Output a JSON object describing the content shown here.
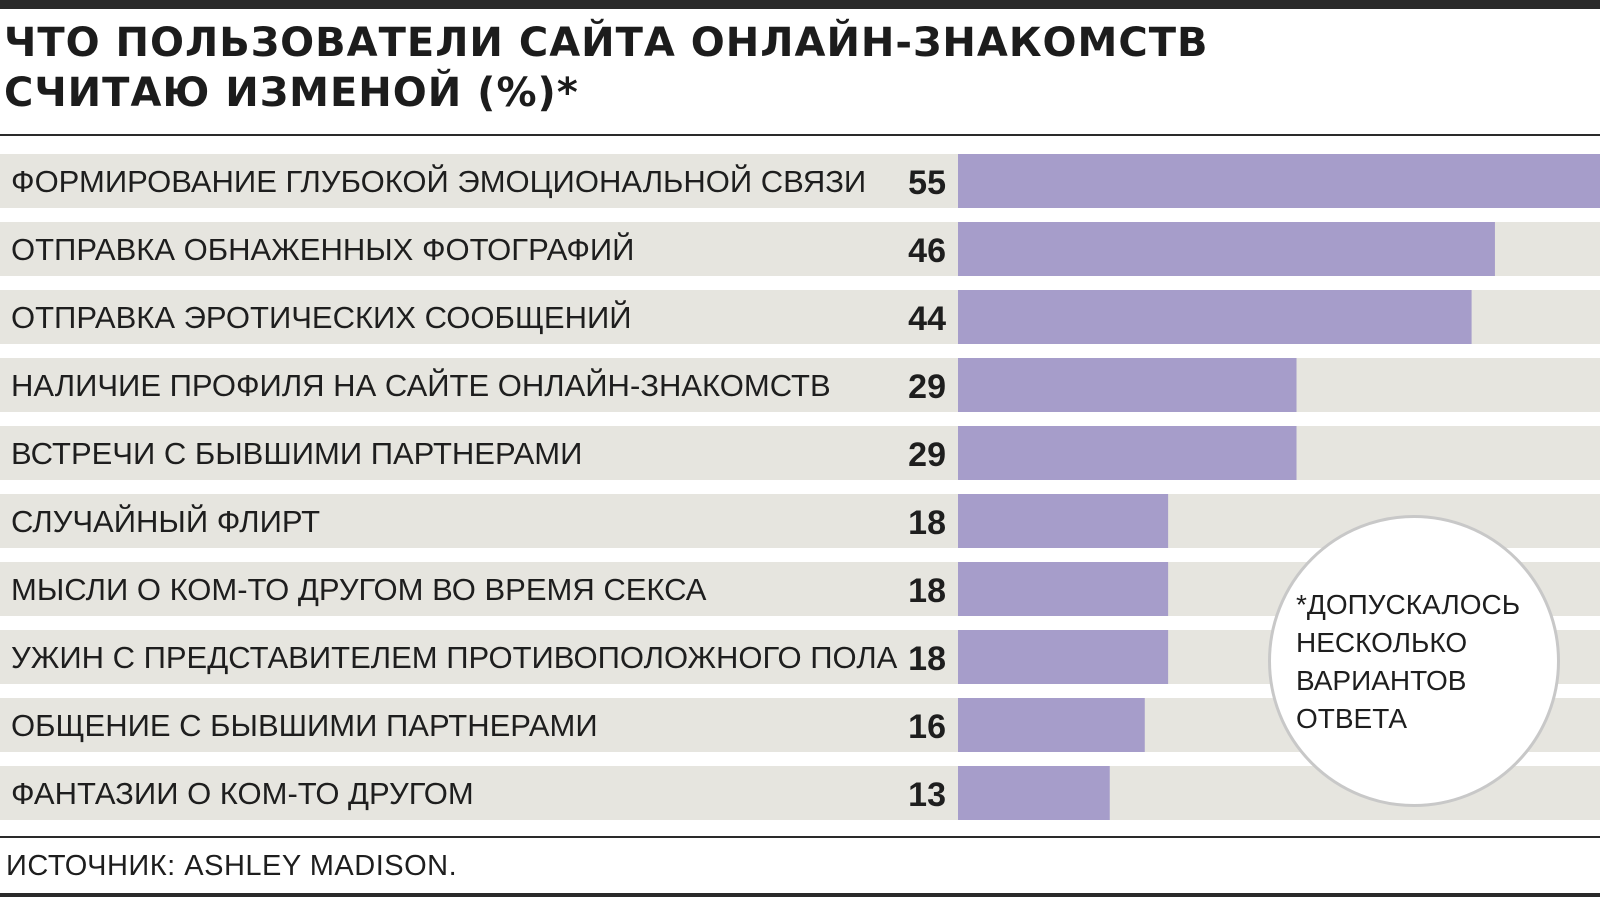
{
  "title_lines": [
    "ЧТО ПОЛЬЗОВАТЕЛИ САЙТА ОНЛАЙН-ЗНАКОМСТВ",
    "СЧИТАЮ ИЗМЕНОЙ (%)*"
  ],
  "colors": {
    "bar": "#a69dca",
    "row_band": "#e6e5df",
    "text": "#1e1e1e",
    "rules": "#2a2a2a",
    "note_border": "#c8c8c8"
  },
  "chart_data": {
    "type": "bar",
    "orientation": "horizontal",
    "title": "ЧТО ПОЛЬЗОВАТЕЛИ САЙТА ОНЛАЙН-ЗНАКОМСТВ СЧИТАЮ ИЗМЕНОЙ (%)*",
    "categories": [
      "ФОРМИРОВАНИЕ ГЛУБОКОЙ ЭМОЦИОНАЛЬНОЙ СВЯЗИ",
      "ОТПРАВКА ОБНАЖЕННЫХ ФОТОГРАФИЙ",
      "ОТПРАВКА ЭРОТИЧЕСКИХ СООБЩЕНИЙ",
      "НАЛИЧИЕ ПРОФИЛЯ НА САЙТЕ ОНЛАЙН-ЗНАКОМСТВ",
      "ВСТРЕЧИ С БЫВШИМИ ПАРТНЕРАМИ",
      "СЛУЧАЙНЫЙ ФЛИРТ",
      "МЫСЛИ О КОМ-ТО ДРУГОМ ВО ВРЕМЯ СЕКСА",
      "УЖИН  С ПРЕДСТАВИТЕЛЕМ ПРОТИВОПОЛОЖНОГО ПОЛА",
      "ОБЩЕНИЕ С БЫВШИМИ ПАРТНЕРАМИ",
      "ФАНТАЗИИ О КОМ-ТО ДРУГОМ"
    ],
    "values": [
      55,
      46,
      44,
      29,
      29,
      18,
      18,
      18,
      16,
      13
    ],
    "xlim": [
      0,
      55
    ],
    "grid": false,
    "data_labels": true
  },
  "note": {
    "text": "*ДОПУСКАЛОСЬ\nНЕСКОЛЬКО\nВАРИАНТОВ\nОТВЕТА"
  },
  "source": "ИСТОЧНИК: ASHLEY MADISON."
}
